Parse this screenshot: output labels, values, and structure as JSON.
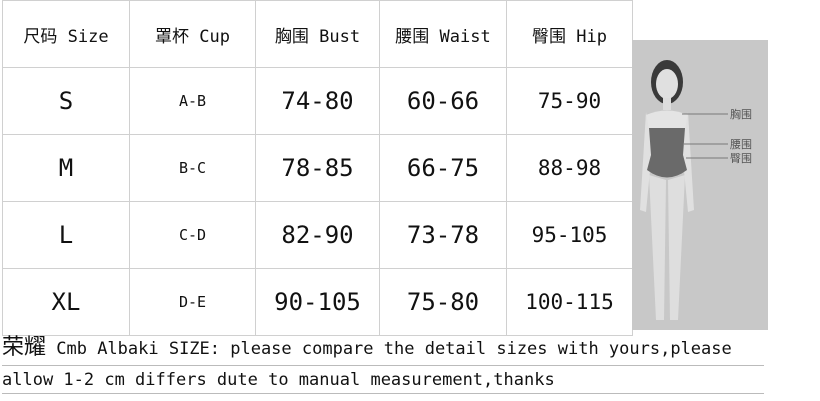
{
  "headers": [
    "尺码 Size",
    "罩杯 Cup",
    "胸围 Bust",
    "腰围 Waist",
    "臀围 Hip"
  ],
  "rows": [
    {
      "size": "S",
      "cup": "A-B",
      "bust": "74-80",
      "waist": "60-66",
      "hip": "75-90"
    },
    {
      "size": "M",
      "cup": "B-C",
      "bust": "78-85",
      "waist": "66-75",
      "hip": "88-98"
    },
    {
      "size": "L",
      "cup": "C-D",
      "bust": "82-90",
      "waist": "73-78",
      "hip": "95-105"
    },
    {
      "size": "XL",
      "cup": "D-E",
      "bust": "90-105",
      "waist": "75-80",
      "hip": "100-115"
    }
  ],
  "figure": {
    "labels": [
      "胸围",
      "腰围",
      "臀围"
    ]
  },
  "footer": {
    "brand": "荣耀",
    "line1": " Cmb Albaki SIZE: please compare the detail sizes with yours,please",
    "line2": "allow 1-2 cm differs dute to manual measurement,thanks"
  }
}
